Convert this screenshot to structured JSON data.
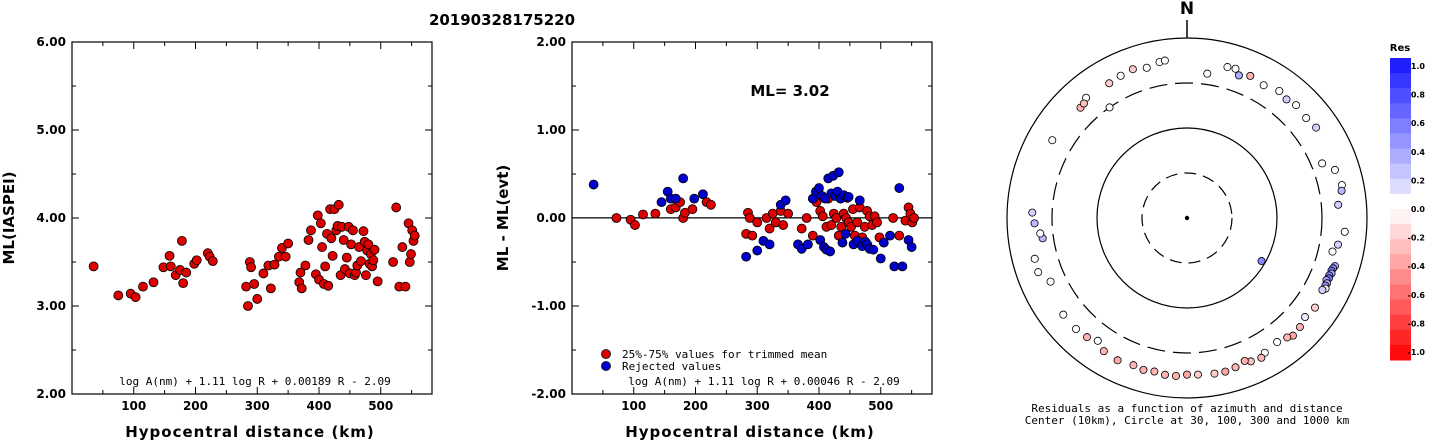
{
  "title": "20190328175220",
  "chart_data": [
    {
      "type": "scatter",
      "ylabel": "ML(IASPEI)",
      "xlabel": "Hypocentral distance (km)",
      "ylim": [
        2.0,
        6.0
      ],
      "yticks": [
        "2.00",
        "3.00",
        "4.00",
        "5.00",
        "6.00"
      ],
      "xticks": [
        "100",
        "200",
        "300",
        "400",
        "500"
      ],
      "formula": "log A(nm) + 1.11 log R + 0.00189 R - 2.09",
      "point_color": "#dd0000",
      "points": [
        [
          35,
          3.45
        ],
        [
          75,
          3.12
        ],
        [
          95,
          3.14
        ],
        [
          103,
          3.1
        ],
        [
          115,
          3.22
        ],
        [
          132,
          3.27
        ],
        [
          148,
          3.44
        ],
        [
          158,
          3.57
        ],
        [
          160,
          3.45
        ],
        [
          168,
          3.35
        ],
        [
          175,
          3.41
        ],
        [
          178,
          3.74
        ],
        [
          180,
          3.26
        ],
        [
          185,
          3.38
        ],
        [
          198,
          3.48
        ],
        [
          202,
          3.52
        ],
        [
          220,
          3.6
        ],
        [
          223,
          3.56
        ],
        [
          228,
          3.51
        ],
        [
          282,
          3.22
        ],
        [
          285,
          3.0
        ],
        [
          288,
          3.5
        ],
        [
          290,
          3.44
        ],
        [
          295,
          3.25
        ],
        [
          300,
          3.08
        ],
        [
          310,
          3.37
        ],
        [
          318,
          3.46
        ],
        [
          322,
          3.2
        ],
        [
          328,
          3.47
        ],
        [
          335,
          3.56
        ],
        [
          340,
          3.66
        ],
        [
          346,
          3.56
        ],
        [
          350,
          3.71
        ],
        [
          368,
          3.27
        ],
        [
          370,
          3.38
        ],
        [
          372,
          3.2
        ],
        [
          378,
          3.46
        ],
        [
          383,
          3.75
        ],
        [
          387,
          3.86
        ],
        [
          395,
          3.36
        ],
        [
          398,
          4.03
        ],
        [
          400,
          3.3
        ],
        [
          403,
          3.94
        ],
        [
          405,
          3.67
        ],
        [
          408,
          3.25
        ],
        [
          410,
          3.45
        ],
        [
          413,
          3.82
        ],
        [
          415,
          3.23
        ],
        [
          418,
          4.1
        ],
        [
          420,
          3.77
        ],
        [
          422,
          3.57
        ],
        [
          425,
          4.1
        ],
        [
          428,
          3.86
        ],
        [
          430,
          3.91
        ],
        [
          432,
          4.15
        ],
        [
          435,
          3.35
        ],
        [
          437,
          3.9
        ],
        [
          440,
          3.75
        ],
        [
          442,
          3.42
        ],
        [
          445,
          3.55
        ],
        [
          448,
          3.9
        ],
        [
          450,
          3.37
        ],
        [
          452,
          3.7
        ],
        [
          455,
          3.86
        ],
        [
          458,
          3.35
        ],
        [
          460,
          3.38
        ],
        [
          462,
          3.46
        ],
        [
          465,
          3.67
        ],
        [
          468,
          3.51
        ],
        [
          472,
          3.85
        ],
        [
          474,
          3.73
        ],
        [
          476,
          3.35
        ],
        [
          478,
          3.63
        ],
        [
          480,
          3.7
        ],
        [
          482,
          3.48
        ],
        [
          484,
          3.59
        ],
        [
          486,
          3.45
        ],
        [
          488,
          3.52
        ],
        [
          490,
          3.64
        ],
        [
          495,
          3.28
        ],
        [
          520,
          3.5
        ],
        [
          525,
          4.12
        ],
        [
          530,
          3.22
        ],
        [
          535,
          3.67
        ],
        [
          540,
          3.22
        ],
        [
          545,
          3.94
        ],
        [
          547,
          3.5
        ],
        [
          549,
          3.59
        ],
        [
          551,
          3.86
        ],
        [
          553,
          3.74
        ],
        [
          555,
          3.8
        ]
      ]
    },
    {
      "type": "scatter",
      "ylabel": "ML - ML(evt)",
      "xlabel": "Hypocentral distance (km)",
      "ylim": [
        -2.0,
        2.0
      ],
      "yticks": [
        "-2.00",
        "-1.00",
        "0.00",
        "1.00",
        "2.00"
      ],
      "xticks": [
        "100",
        "200",
        "300",
        "400",
        "500"
      ],
      "annotation": "ML= 3.02",
      "formula": "log A(nm) + 1.11 log R + 0.00046 R - 2.09",
      "legend": [
        {
          "label": "25%-75% values for trimmed mean",
          "color": "#dd0000"
        },
        {
          "label": "Rejected values",
          "color": "#0000cc"
        }
      ],
      "series": [
        {
          "name": "25%-75% values for trimmed mean",
          "color": "#dd0000",
          "points": [
            [
              72,
              0.0
            ],
            [
              95,
              -0.02
            ],
            [
              102,
              -0.08
            ],
            [
              115,
              0.04
            ],
            [
              135,
              0.05
            ],
            [
              160,
              0.1
            ],
            [
              168,
              0.12
            ],
            [
              175,
              0.18
            ],
            [
              180,
              0.0
            ],
            [
              183,
              0.06
            ],
            [
              195,
              0.1
            ],
            [
              218,
              0.18
            ],
            [
              225,
              0.15
            ],
            [
              282,
              -0.18
            ],
            [
              285,
              0.06
            ],
            [
              288,
              0.0
            ],
            [
              292,
              -0.2
            ],
            [
              300,
              -0.05
            ],
            [
              315,
              0.0
            ],
            [
              320,
              -0.12
            ],
            [
              325,
              0.05
            ],
            [
              330,
              -0.05
            ],
            [
              338,
              0.08
            ],
            [
              342,
              -0.08
            ],
            [
              350,
              0.05
            ],
            [
              372,
              -0.12
            ],
            [
              380,
              0.0
            ],
            [
              390,
              -0.2
            ],
            [
              396,
              0.18
            ],
            [
              402,
              0.08
            ],
            [
              406,
              0.02
            ],
            [
              412,
              -0.1
            ],
            [
              415,
              0.22
            ],
            [
              420,
              -0.08
            ],
            [
              424,
              0.05
            ],
            [
              428,
              0.0
            ],
            [
              432,
              -0.2
            ],
            [
              436,
              -0.1
            ],
            [
              440,
              0.05
            ],
            [
              444,
              0.0
            ],
            [
              448,
              -0.05
            ],
            [
              452,
              -0.1
            ],
            [
              455,
              0.1
            ],
            [
              458,
              -0.2
            ],
            [
              462,
              -0.05
            ],
            [
              466,
              0.12
            ],
            [
              470,
              -0.22
            ],
            [
              474,
              -0.1
            ],
            [
              478,
              0.08
            ],
            [
              482,
              0.02
            ],
            [
              486,
              -0.08
            ],
            [
              490,
              0.02
            ],
            [
              494,
              -0.05
            ],
            [
              498,
              -0.22
            ],
            [
              520,
              0.0
            ],
            [
              530,
              -0.2
            ],
            [
              540,
              -0.03
            ],
            [
              545,
              0.12
            ],
            [
              548,
              0.05
            ],
            [
              551,
              -0.05
            ],
            [
              554,
              0.0
            ]
          ]
        },
        {
          "name": "Rejected values",
          "color": "#0000cc",
          "points": [
            [
              35,
              0.38
            ],
            [
              145,
              0.18
            ],
            [
              155,
              0.3
            ],
            [
              160,
              0.22
            ],
            [
              168,
              0.22
            ],
            [
              180,
              0.45
            ],
            [
              198,
              0.22
            ],
            [
              212,
              0.27
            ],
            [
              282,
              -0.44
            ],
            [
              300,
              -0.37
            ],
            [
              310,
              -0.26
            ],
            [
              320,
              -0.3
            ],
            [
              338,
              0.15
            ],
            [
              346,
              0.2
            ],
            [
              366,
              -0.3
            ],
            [
              372,
              -0.35
            ],
            [
              382,
              -0.3
            ],
            [
              390,
              0.22
            ],
            [
              395,
              0.3
            ],
            [
              400,
              0.34
            ],
            [
              402,
              -0.25
            ],
            [
              405,
              0.25
            ],
            [
              408,
              -0.33
            ],
            [
              410,
              0.22
            ],
            [
              412,
              -0.36
            ],
            [
              415,
              0.45
            ],
            [
              418,
              -0.38
            ],
            [
              420,
              0.28
            ],
            [
              423,
              0.48
            ],
            [
              426,
              0.25
            ],
            [
              430,
              0.3
            ],
            [
              432,
              0.52
            ],
            [
              435,
              0.22
            ],
            [
              438,
              -0.28
            ],
            [
              440,
              0.26
            ],
            [
              443,
              -0.18
            ],
            [
              446,
              0.23
            ],
            [
              448,
              0.24
            ],
            [
              456,
              -0.3
            ],
            [
              462,
              -0.26
            ],
            [
              466,
              0.2
            ],
            [
              470,
              -0.32
            ],
            [
              475,
              -0.27
            ],
            [
              478,
              -0.3
            ],
            [
              482,
              -0.35
            ],
            [
              488,
              -0.36
            ],
            [
              500,
              -0.46
            ],
            [
              505,
              -0.28
            ],
            [
              515,
              -0.2
            ],
            [
              522,
              -0.55
            ],
            [
              530,
              0.34
            ],
            [
              535,
              -0.55
            ],
            [
              545,
              -0.25
            ],
            [
              550,
              -0.33
            ]
          ]
        }
      ]
    },
    {
      "type": "polar",
      "top_label": "N",
      "caption": [
        "Residuals as a function of azimuth and distance",
        "Center (10km), Circle at 30, 100, 300 and 1000 km"
      ],
      "colorbar": {
        "title": "Res",
        "labels": [
          "1.0",
          "0.8",
          "0.6",
          "0.4",
          "0.2",
          "0.0",
          "-0.2",
          "-0.4",
          "-0.6",
          "-0.8",
          "-1.0"
        ]
      },
      "points": [
        [
          8,
          400,
          0.0
        ],
        [
          15,
          530,
          0.0
        ],
        [
          18,
          540,
          0.0
        ],
        [
          24,
          520,
          -0.3
        ],
        [
          20,
          470,
          0.35
        ],
        [
          30,
          490,
          0.0
        ],
        [
          36,
          540,
          0.0
        ],
        [
          40,
          510,
          0.2
        ],
        [
          44,
          540,
          0.0
        ],
        [
          50,
          520,
          0.0
        ],
        [
          55,
          550,
          0.2
        ],
        [
          68,
          400,
          0.0
        ],
        [
          72,
          520,
          0.0
        ],
        [
          78,
          560,
          0.0
        ],
        [
          80,
          540,
          0.3
        ],
        [
          85,
          470,
          0.2
        ],
        [
          95,
          560,
          0.0
        ],
        [
          100,
          490,
          0.2
        ],
        [
          103,
          440,
          0.0
        ],
        [
          108,
          520,
          0.4
        ],
        [
          109,
          505,
          0.5
        ],
        [
          110,
          495,
          0.6
        ],
        [
          111,
          510,
          0.4
        ],
        [
          112,
          490,
          0.5
        ],
        [
          113,
          500,
          0.6
        ],
        [
          114,
          480,
          0.4
        ],
        [
          115,
          505,
          0.3
        ],
        [
          116,
          498,
          0.5
        ],
        [
          117,
          520,
          -0.1
        ],
        [
          118,
          490,
          0.2
        ],
        [
          125,
          530,
          -0.2
        ],
        [
          130,
          500,
          0.1
        ],
        [
          134,
          540,
          -0.3
        ],
        [
          138,
          560,
          -0.35
        ],
        [
          140,
          525,
          -0.3
        ],
        [
          144,
          490,
          0.0
        ],
        [
          150,
          520,
          0.0
        ],
        [
          152,
          560,
          -0.3
        ],
        [
          156,
          540,
          -0.25
        ],
        [
          158,
          500,
          -0.3
        ],
        [
          162,
          540,
          -0.3
        ],
        [
          166,
          560,
          -0.35
        ],
        [
          170,
          555,
          -0.2
        ],
        [
          176,
          540,
          -0.2
        ],
        [
          180,
          535,
          -0.35
        ],
        [
          184,
          560,
          -0.3
        ],
        [
          188,
          560,
          -0.3
        ],
        [
          192,
          540,
          -0.3
        ],
        [
          196,
          555,
          -0.3
        ],
        [
          200,
          535,
          -0.3
        ],
        [
          206,
          560,
          -0.35
        ],
        [
          212,
          540,
          -0.3
        ],
        [
          216,
          470,
          0.0
        ],
        [
          220,
          520,
          -0.3
        ],
        [
          225,
          540,
          0.0
        ],
        [
          232,
          540,
          0.0
        ],
        [
          245,
          455,
          0.0
        ],
        [
          250,
          560,
          0.0
        ],
        [
          255,
          550,
          0.0
        ],
        [
          262,
          400,
          0.3
        ],
        [
          264,
          420,
          0.0
        ],
        [
          268,
          480,
          0.3
        ],
        [
          272,
          510,
          0.2
        ],
        [
          300,
          520,
          0.0
        ],
        [
          320,
          540,
          0.0
        ],
        [
          316,
          490,
          -0.3
        ],
        [
          318,
          500,
          -0.25
        ],
        [
          330,
          520,
          -0.2
        ],
        [
          335,
          540,
          0.0
        ],
        [
          340,
          560,
          -0.2
        ],
        [
          345,
          520,
          0.0
        ],
        [
          350,
          560,
          0.0
        ],
        [
          352,
          570,
          0.0
        ],
        [
          120,
          90,
          0.5
        ],
        [
          325,
          300,
          0.0
        ]
      ]
    }
  ]
}
